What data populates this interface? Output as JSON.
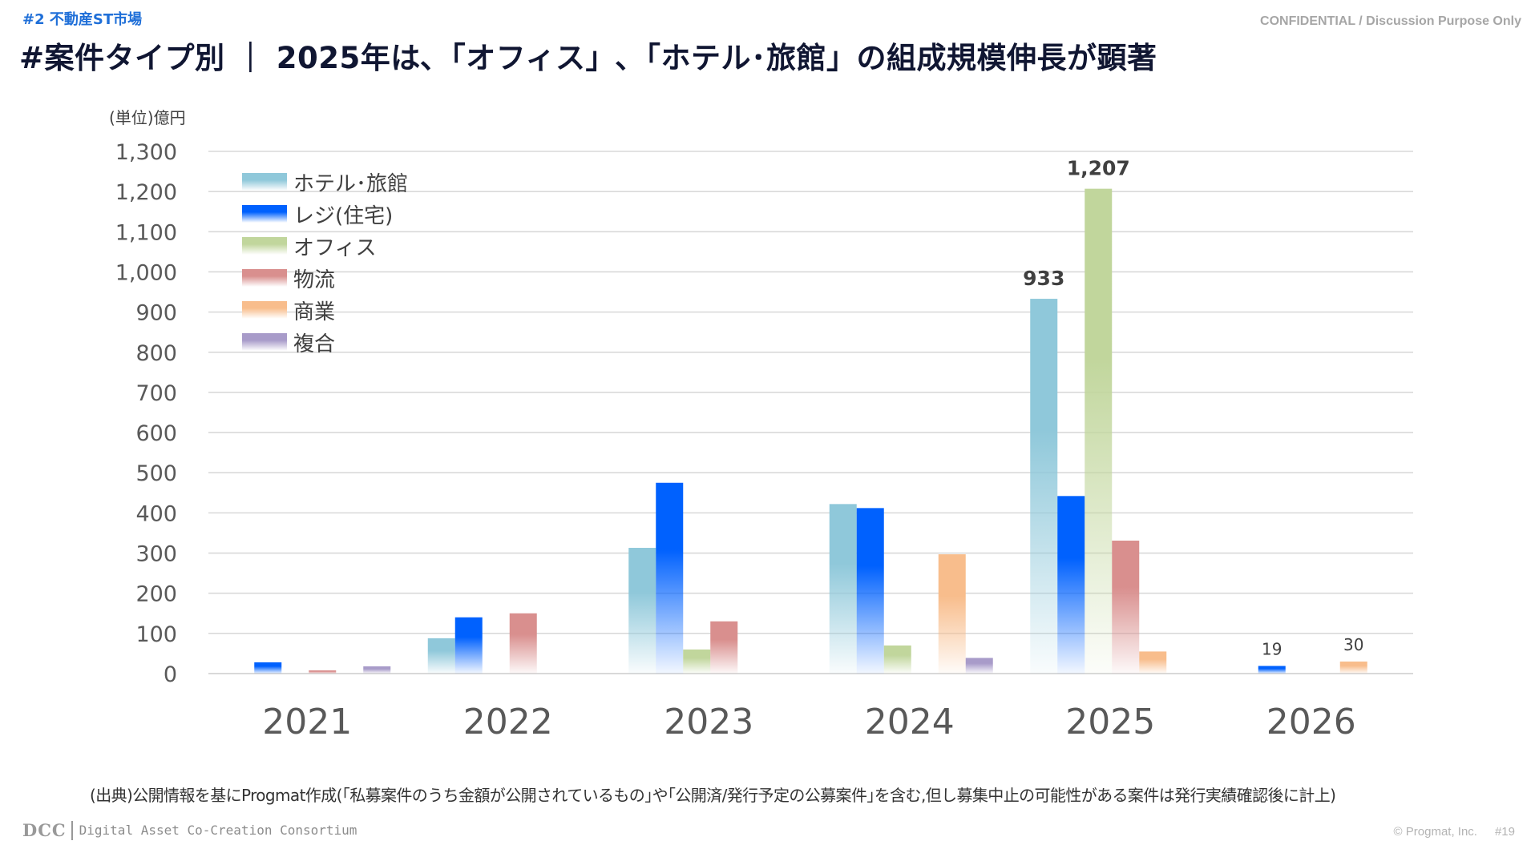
{
  "header": {
    "section": "#2 不動産ST市場",
    "title": "#案件タイプ別 ｜ 2025年は､「オフィス」､「ホテル･旅館」の組成規模伸長が顕著",
    "confidential": "CONFIDENTIAL / Discussion Purpose Only"
  },
  "footer": {
    "source_note": "(出典)公開情報を基にProgmat作成(｢私募案件のうち金額が公開されているもの｣や｢公開済/発行予定の公募案件｣を含む,但し募集中止の可能性がある案件は発行実績確認後に計上)",
    "logo_short": "DCC",
    "logo_full": "Digital Asset Co-Creation Consortium",
    "copyright": "© Progmat, Inc.",
    "page_number": "#19"
  },
  "chart_data": {
    "type": "bar",
    "title": "",
    "unit_label": "(単位)億円",
    "xlabel": "",
    "ylabel": "億円",
    "ylim": [
      0,
      1300
    ],
    "yticks": [
      0,
      100,
      200,
      300,
      400,
      500,
      600,
      700,
      800,
      900,
      1000,
      1100,
      1200,
      1300
    ],
    "ytick_labels": [
      "0",
      "100",
      "200",
      "300",
      "400",
      "500",
      "600",
      "700",
      "800",
      "900",
      "1,000",
      "1,100",
      "1,200",
      "1,300"
    ],
    "grid": true,
    "legend_position": "top-left",
    "categories": [
      "2021",
      "2022",
      "2023",
      "2024",
      "2025",
      "2026"
    ],
    "series": [
      {
        "name": "ホテル･旅館",
        "color": "#8fc8da",
        "values": [
          0,
          88,
          313,
          422,
          933,
          0
        ]
      },
      {
        "name": "レジ(住宅)",
        "color": "#0061fe",
        "values": [
          28,
          140,
          475,
          412,
          442,
          19
        ]
      },
      {
        "name": "オフィス",
        "color": "#c1d69c",
        "values": [
          0,
          0,
          60,
          70,
          1207,
          0
        ]
      },
      {
        "name": "物流",
        "color": "#d98f8e",
        "values": [
          8,
          150,
          130,
          0,
          331,
          0
        ]
      },
      {
        "name": "商業",
        "color": "#f8bd8c",
        "values": [
          0,
          0,
          0,
          297,
          55,
          30
        ]
      },
      {
        "name": "複合",
        "color": "#a89bc9",
        "values": [
          18,
          0,
          0,
          39,
          0,
          0
        ]
      }
    ],
    "data_labels": [
      {
        "category": "2025",
        "series": "ホテル･旅館",
        "text": "933",
        "style": "big"
      },
      {
        "category": "2025",
        "series": "オフィス",
        "text": "1,207",
        "style": "big"
      },
      {
        "category": "2026",
        "series": "レジ(住宅)",
        "text": "19",
        "style": "small"
      },
      {
        "category": "2026",
        "series": "商業",
        "text": "30",
        "style": "small"
      }
    ]
  }
}
